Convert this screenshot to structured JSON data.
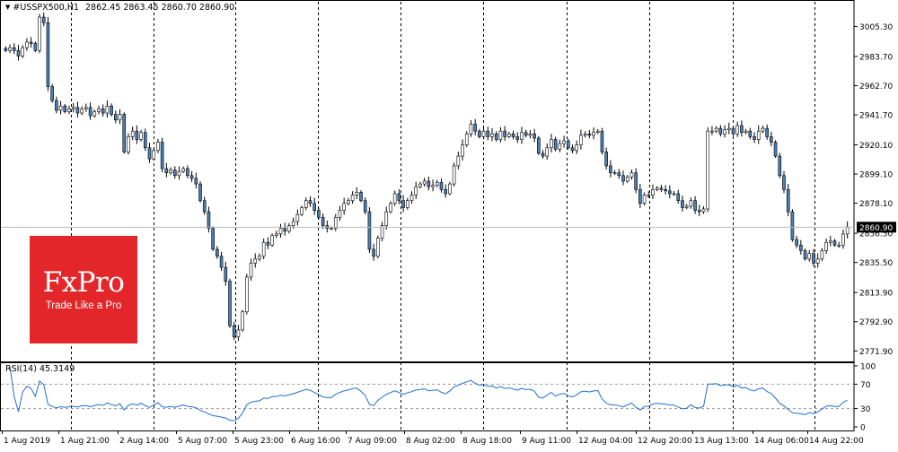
{
  "header": {
    "symbol": "#USSPX500,H1",
    "ohlc": "2862.45 2863.45 2860.70 2860.90"
  },
  "rsi": {
    "label": "RSI(14) 45.3149",
    "levels": [
      100,
      70,
      30,
      0
    ],
    "level_labels": [
      "100",
      "70",
      "30",
      "0"
    ],
    "line_color": "#1e6fd0"
  },
  "logo": {
    "brand": "FxPro",
    "tagline": "Trade Like a Pro",
    "color": "#e3262a"
  },
  "chart_data": {
    "type": "candlestick",
    "title": "#USSPX500,H1",
    "y_range": [
      2765,
      3023
    ],
    "y_ticks": [
      3005.3,
      2983.7,
      2962.7,
      2941.7,
      2920.1,
      2899.1,
      2878.1,
      2856.5,
      2835.5,
      2813.9,
      2792.9,
      2771.9
    ],
    "y_tick_labels": [
      "3005.30",
      "2983.70",
      "2962.70",
      "2941.70",
      "2920.10",
      "2899.10",
      "2878.10",
      "2856.50",
      "2835.50",
      "2813.90",
      "2792.90",
      "2771.90"
    ],
    "current_price": 2860.9,
    "current_price_label": "2860.90",
    "x_labels": [
      "1 Aug 2019",
      "1 Aug 21:00",
      "2 Aug 14:00",
      "5 Aug 07:00",
      "5 Aug 23:00",
      "6 Aug 16:00",
      "7 Aug 09:00",
      "8 Aug 02:00",
      "8 Aug 18:00",
      "9 Aug 11:00",
      "12 Aug 04:00",
      "12 Aug 20:00",
      "13 Aug 13:00",
      "14 Aug 06:00",
      "14 Aug 22:00"
    ],
    "grid": "vertical dashed separators",
    "bull_color": "#ffffff",
    "bear_color": "#4a7fb5",
    "series": [
      {
        "name": "Close",
        "close": [
          2988,
          2990,
          2988,
          2984,
          2990,
          2994,
          2993,
          2988,
          3012,
          3008,
          2962,
          2952,
          2945,
          2948,
          2944,
          2946,
          2947,
          2943,
          2946,
          2947,
          2941,
          2944,
          2946,
          2943,
          2948,
          2942,
          2938,
          2942,
          2915,
          2926,
          2930,
          2924,
          2929,
          2918,
          2910,
          2916,
          2922,
          2903,
          2900,
          2902,
          2898,
          2901,
          2903,
          2898,
          2896,
          2892,
          2880,
          2872,
          2860,
          2845,
          2840,
          2832,
          2822,
          2790,
          2782,
          2787,
          2800,
          2825,
          2835,
          2838,
          2840,
          2850,
          2848,
          2855,
          2856,
          2860,
          2858,
          2862,
          2865,
          2870,
          2875,
          2880,
          2878,
          2873,
          2868,
          2862,
          2860,
          2860,
          2868,
          2873,
          2878,
          2880,
          2884,
          2886,
          2880,
          2872,
          2845,
          2840,
          2853,
          2862,
          2872,
          2878,
          2885,
          2880,
          2875,
          2880,
          2884,
          2890,
          2892,
          2894,
          2890,
          2891,
          2893,
          2888,
          2885,
          2892,
          2905,
          2912,
          2920,
          2928,
          2935,
          2930,
          2926,
          2930,
          2926,
          2928,
          2924,
          2930,
          2926,
          2928,
          2926,
          2924,
          2929,
          2927,
          2928,
          2925,
          2914,
          2912,
          2918,
          2924,
          2917,
          2921,
          2923,
          2918,
          2916,
          2920,
          2927,
          2928,
          2927,
          2929,
          2930,
          2915,
          2905,
          2900,
          2900,
          2898,
          2894,
          2897,
          2900,
          2888,
          2878,
          2884,
          2884,
          2888,
          2889,
          2888,
          2887,
          2885,
          2885,
          2880,
          2875,
          2876,
          2880,
          2873,
          2872,
          2874,
          2930,
          2930,
          2932,
          2928,
          2931,
          2932,
          2928,
          2934,
          2929,
          2930,
          2926,
          2924,
          2930,
          2932,
          2926,
          2922,
          2912,
          2898,
          2888,
          2872,
          2852,
          2848,
          2844,
          2838,
          2842,
          2835,
          2838,
          2844,
          2850,
          2851,
          2848,
          2848,
          2856,
          2861
        ]
      }
    ]
  }
}
